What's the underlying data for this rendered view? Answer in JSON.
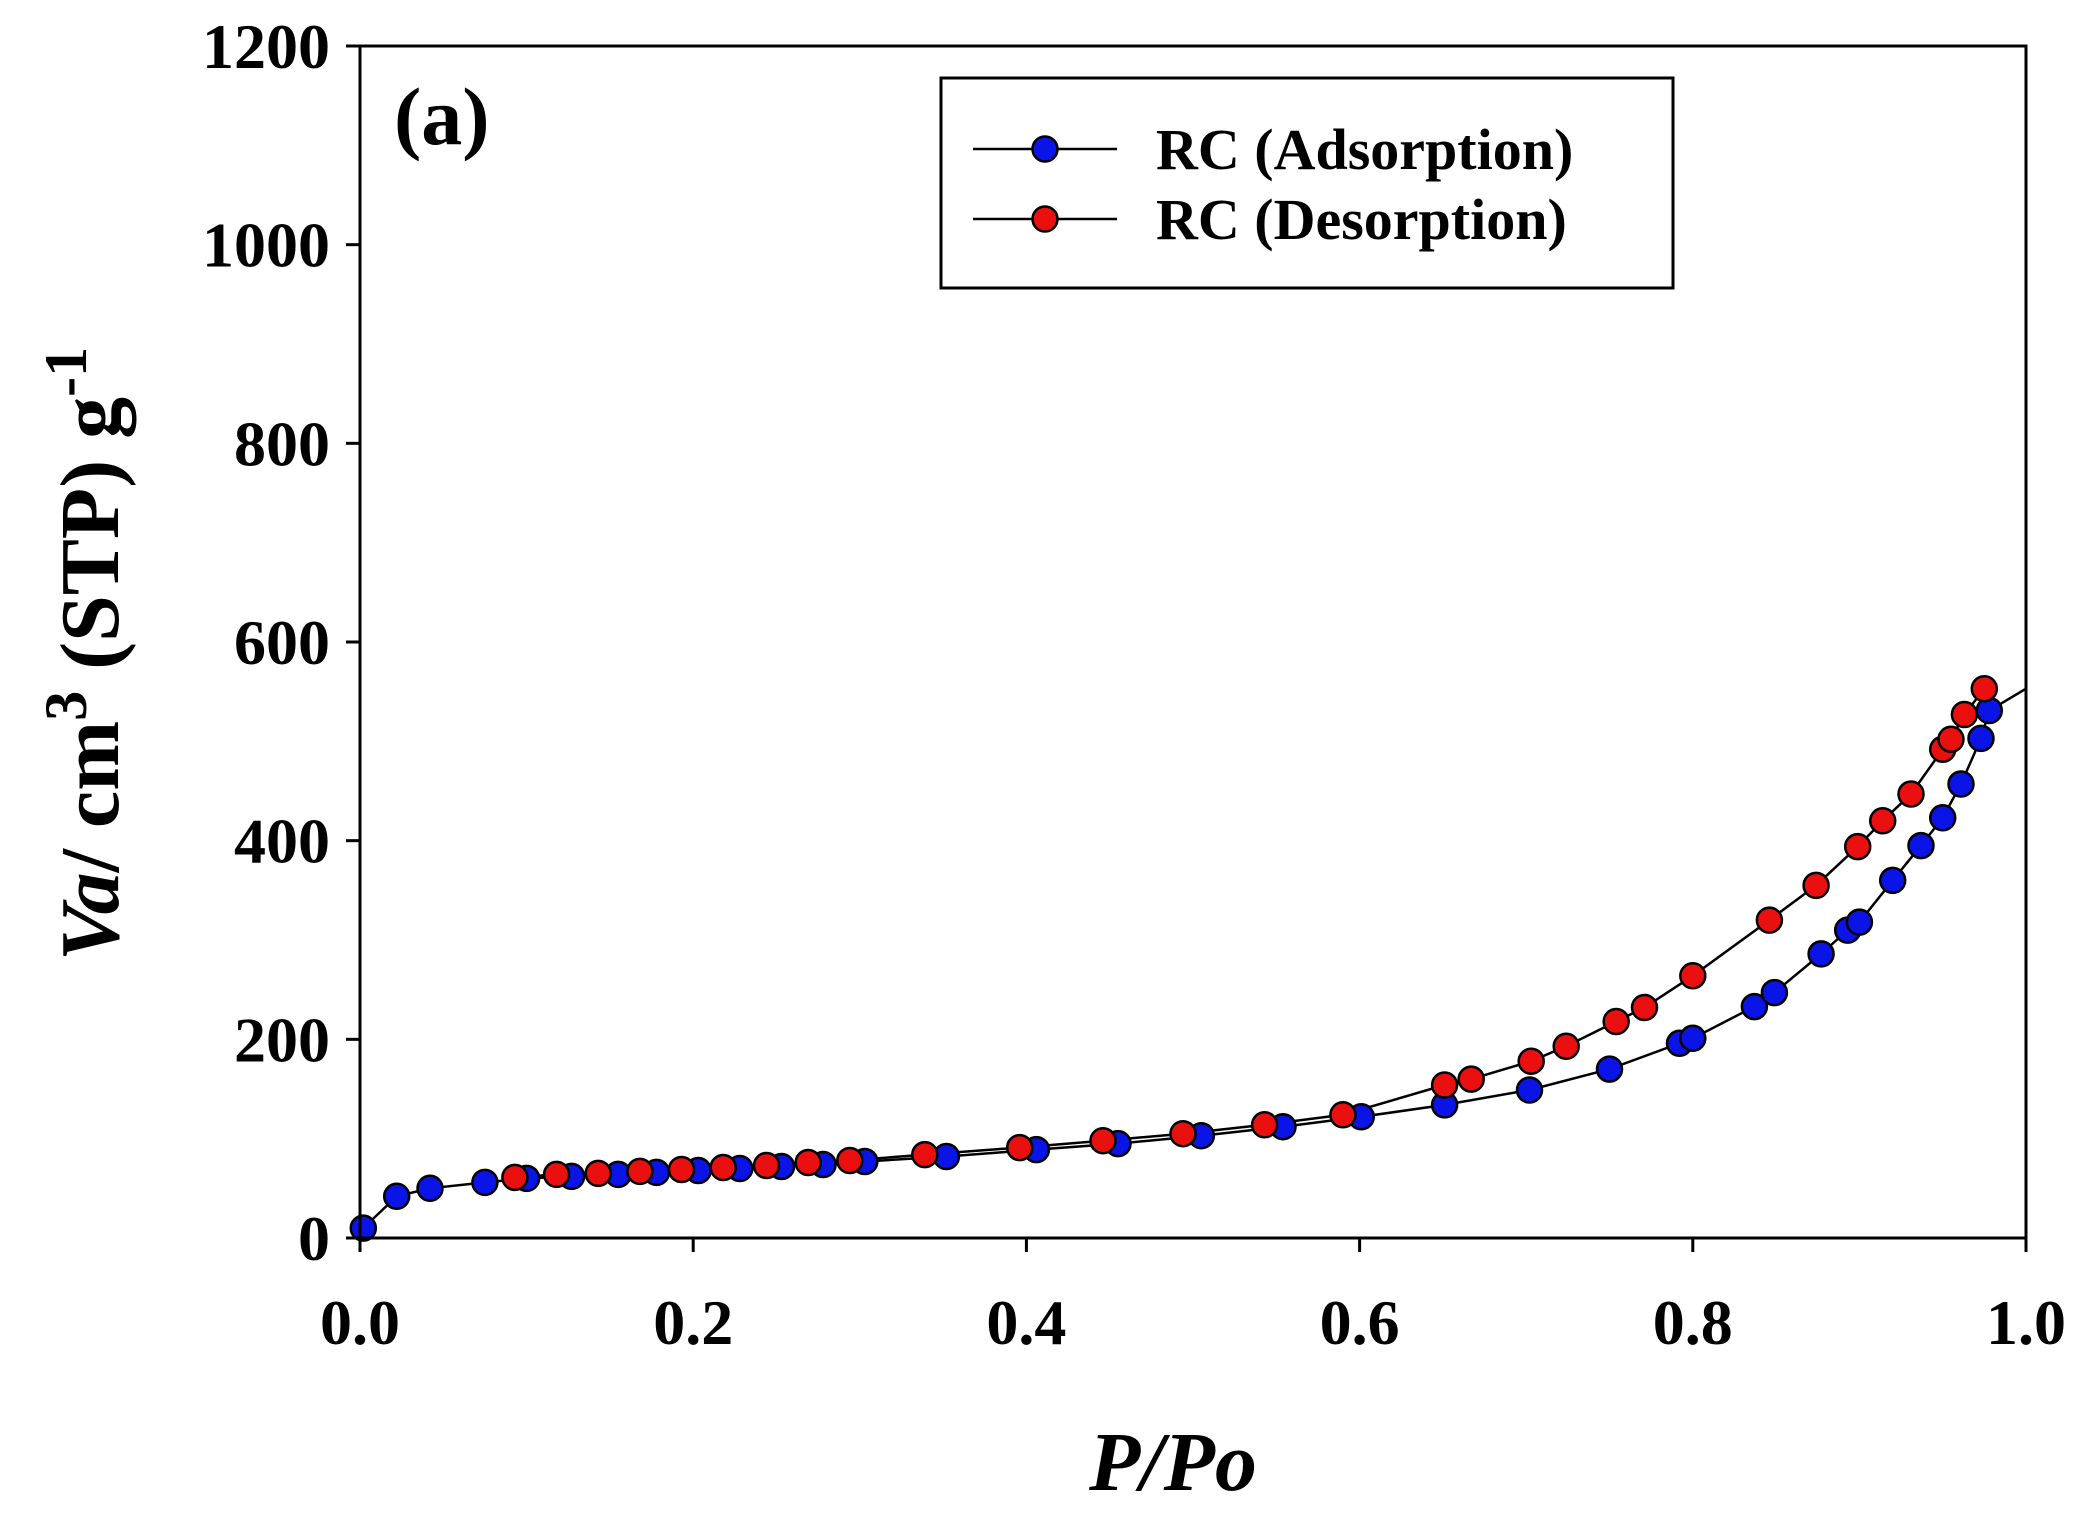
{
  "chart_data": {
    "type": "line",
    "panel_label": "(a)",
    "xlabel": "P/Po",
    "ylabel": {
      "prefix": "Va",
      "text": "/ cm",
      "sup1": "3",
      "mid": " (STP) g",
      "sup2": "-1"
    },
    "xlim": [
      0.0,
      1.0
    ],
    "ylim": [
      0,
      1200
    ],
    "xticks": [
      "0.0",
      "0.2",
      "0.4",
      "0.6",
      "0.8",
      "1.0"
    ],
    "yticks": [
      "0",
      "200",
      "400",
      "600",
      "800",
      "1000",
      "1200"
    ],
    "grid": false,
    "legend_position": "top-right",
    "series": [
      {
        "name": "RC (Adsorption)",
        "color": "#0a14e6",
        "marker": "circle",
        "x": [
          0.002,
          0.022,
          0.042,
          0.075,
          0.1,
          0.127,
          0.155,
          0.178,
          0.203,
          0.228,
          0.253,
          0.278,
          0.303,
          0.352,
          0.406,
          0.455,
          0.505,
          0.554,
          0.601,
          0.651,
          0.702,
          0.75,
          0.792,
          0.8,
          0.837,
          0.849,
          0.877,
          0.893,
          0.9,
          0.92,
          0.937,
          0.95,
          0.961,
          0.973,
          0.978
        ],
        "y": [
          10,
          42,
          50,
          56,
          60,
          62,
          64,
          66,
          68,
          70,
          72,
          74,
          77,
          82,
          89,
          95,
          103,
          112,
          122,
          134,
          149,
          170,
          196,
          201,
          233,
          247,
          286,
          310,
          318,
          360,
          395,
          423,
          457,
          503,
          531
        ]
      },
      {
        "name": "RC (Desorption)",
        "color": "#ea1010",
        "marker": "circle",
        "x": [
          0.093,
          0.118,
          0.143,
          0.168,
          0.193,
          0.218,
          0.244,
          0.269,
          0.294,
          0.339,
          0.396,
          0.446,
          0.494,
          0.543,
          0.59,
          0.651,
          0.667,
          0.703,
          0.724,
          0.754,
          0.771,
          0.8,
          0.846,
          0.874,
          0.899,
          0.914,
          0.931,
          0.95,
          0.955,
          0.963,
          0.975
        ],
        "y": [
          61,
          64,
          65,
          67,
          69,
          71,
          73,
          76,
          78,
          84,
          91,
          98,
          105,
          114,
          124,
          154,
          160,
          178,
          193,
          218,
          232,
          264,
          320,
          355,
          394,
          420,
          447,
          492,
          502,
          527,
          553
        ]
      }
    ],
    "connector": {
      "from": [
        0.978,
        531
      ],
      "to": [
        1.0,
        553
      ]
    }
  }
}
